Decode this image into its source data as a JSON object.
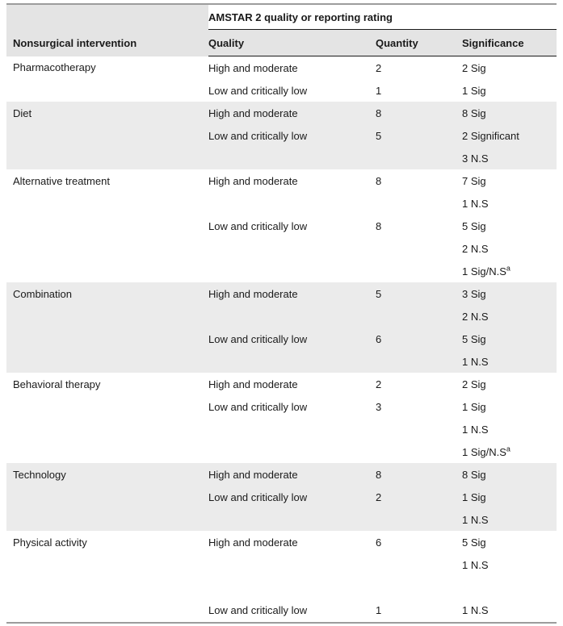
{
  "table": {
    "spanning_header": "AMSTAR 2 quality or reporting rating",
    "columns": [
      "Nonsurgical intervention",
      "Quality",
      "Quantity",
      "Significance"
    ],
    "groups": [
      {
        "intervention": "Pharmacotherapy",
        "shaded": false,
        "rows": [
          {
            "quality": "High and moderate",
            "quantity": "2",
            "significance": "2 Sig"
          },
          {
            "quality": "Low and critically low",
            "quantity": "1",
            "significance": "1 Sig"
          }
        ]
      },
      {
        "intervention": "Diet",
        "shaded": true,
        "rows": [
          {
            "quality": "High and moderate",
            "quantity": "8",
            "significance": "8 Sig"
          },
          {
            "quality": "Low and critically low",
            "quantity": "5",
            "significance": "2 Significant"
          },
          {
            "quality": "",
            "quantity": "",
            "significance": "3 N.S"
          }
        ]
      },
      {
        "intervention": "Alternative treatment",
        "shaded": false,
        "rows": [
          {
            "quality": "High and moderate",
            "quantity": "8",
            "significance": "7 Sig"
          },
          {
            "quality": "",
            "quantity": "",
            "significance": "1 N.S"
          },
          {
            "quality": "Low and critically low",
            "quantity": "8",
            "significance": "5 Sig"
          },
          {
            "quality": "",
            "quantity": "",
            "significance": "2 N.S"
          },
          {
            "quality": "",
            "quantity": "",
            "significance": "1 Sig/N.S",
            "significance_sup": "a"
          }
        ]
      },
      {
        "intervention": "Combination",
        "shaded": true,
        "rows": [
          {
            "quality": "High and moderate",
            "quantity": "5",
            "significance": "3 Sig"
          },
          {
            "quality": "",
            "quantity": "",
            "significance": "2 N.S"
          },
          {
            "quality": "Low and critically low",
            "quantity": "6",
            "significance": "5 Sig"
          },
          {
            "quality": "",
            "quantity": "",
            "significance": "1 N.S"
          }
        ]
      },
      {
        "intervention": "Behavioral therapy",
        "shaded": false,
        "rows": [
          {
            "quality": "High and moderate",
            "quantity": "2",
            "significance": "2 Sig"
          },
          {
            "quality": "Low and critically low",
            "quantity": "3",
            "significance": "1 Sig"
          },
          {
            "quality": "",
            "quantity": "",
            "significance": "1 N.S"
          },
          {
            "quality": "",
            "quantity": "",
            "significance": "1 Sig/N.S",
            "significance_sup": "a"
          }
        ]
      },
      {
        "intervention": "Technology",
        "shaded": true,
        "rows": [
          {
            "quality": "High and moderate",
            "quantity": "8",
            "significance": "8 Sig"
          },
          {
            "quality": "Low and critically low",
            "quantity": "2",
            "significance": "1 Sig"
          },
          {
            "quality": "",
            "quantity": "",
            "significance": "1 N.S"
          }
        ]
      },
      {
        "intervention": "Physical activity",
        "shaded": false,
        "rows": [
          {
            "quality": "High and moderate",
            "quantity": "6",
            "significance": "5 Sig"
          },
          {
            "quality": "",
            "quantity": "",
            "significance": "1 N.S"
          },
          {
            "quality": "",
            "quantity": "",
            "significance": ""
          },
          {
            "quality": "Low and critically low",
            "quantity": "1",
            "significance": "1 N.S"
          }
        ]
      }
    ],
    "colors": {
      "header_shade": "#e4e4e4",
      "row_shade": "#ebebeb",
      "rule_gray": "#9c9c9c",
      "rule_black": "#1a1a1a"
    }
  }
}
